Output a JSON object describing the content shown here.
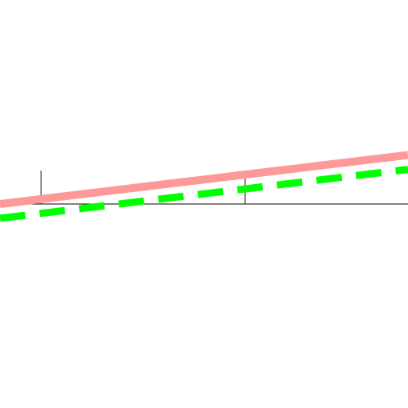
{
  "chart_data": {
    "type": "line",
    "title": "",
    "xlabel": "",
    "ylabel": "",
    "xlim": [
      -0.5,
      4.5
    ],
    "ylim": [
      -5,
      5
    ],
    "grid": false,
    "legend": "none",
    "axes": {
      "x_axis_at_y": 0,
      "y_tick_marks_at_x": [
        0,
        2.5
      ]
    },
    "series": [
      {
        "style": "solid",
        "color": "#ff9999",
        "x": [
          -0.5,
          0,
          0.5,
          1,
          1.5,
          2,
          2.5,
          3,
          3.5,
          4,
          4.5
        ],
        "y": [
          0,
          0.12,
          0.24,
          0.36,
          0.48,
          0.6,
          0.72,
          0.84,
          0.96,
          1.08,
          1.2
        ]
      },
      {
        "style": "dashed",
        "color": "#00ff00",
        "x": [
          -0.5,
          0,
          0.5,
          1,
          1.5,
          2,
          2.5,
          3,
          3.5,
          4,
          4.5
        ],
        "y": [
          -0.35,
          -0.23,
          -0.11,
          0.01,
          0.13,
          0.25,
          0.37,
          0.49,
          0.61,
          0.73,
          0.85
        ]
      }
    ]
  }
}
